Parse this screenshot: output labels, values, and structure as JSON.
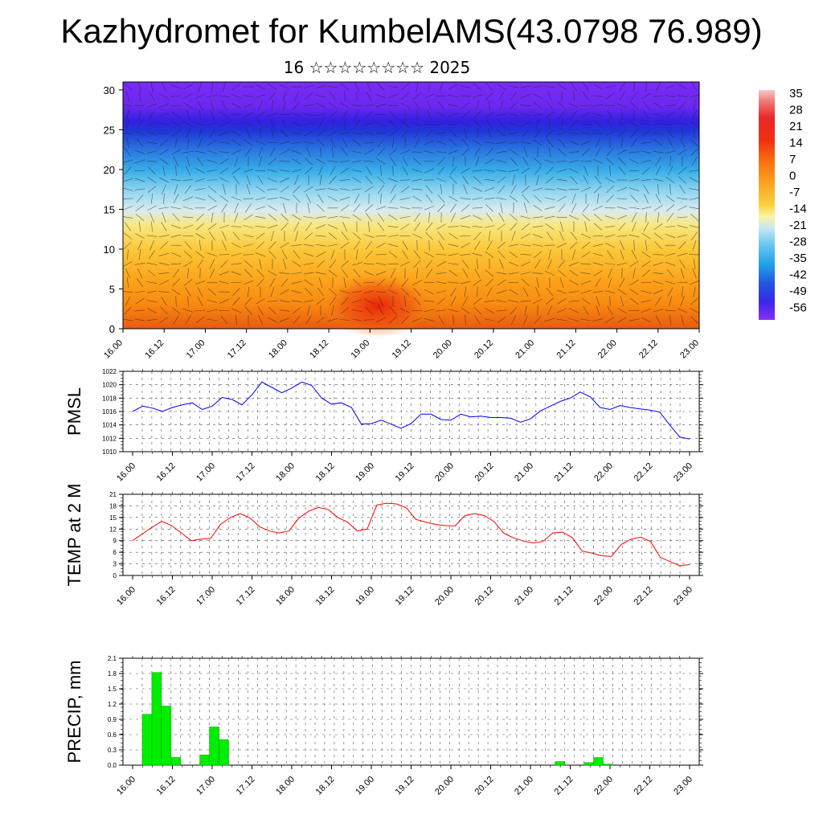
{
  "header": {
    "title": "Kazhydromet for KumbelAMS(43.0798 76.989)",
    "subtitle": "16 ☆☆☆☆☆☆☆☆ 2025"
  },
  "chart_data": [
    {
      "type": "heatmap",
      "title": "",
      "xlabel": "",
      "ylabel": "",
      "ylim": [
        0,
        31
      ],
      "y_ticks": [
        "0",
        "5",
        "10",
        "15",
        "20",
        "25",
        "30"
      ],
      "x_ticks": [
        "16.00",
        "16.12",
        "17.00",
        "17.12",
        "18.00",
        "18.12",
        "19.00",
        "19.12",
        "20.00",
        "20.12",
        "21.00",
        "21.12",
        "22.00",
        "22.12",
        "23.00"
      ],
      "colorbar_labels": [
        "35",
        "28",
        "21",
        "14",
        "7",
        "0",
        "-7",
        "-14",
        "-21",
        "-28",
        "-35",
        "-42",
        "-49",
        "-56"
      ],
      "notes": "Temperature cross-section with wind barbs; warm at surface, cold aloft"
    },
    {
      "type": "line",
      "ylabel": "PMSL",
      "ylim": [
        1010,
        1022
      ],
      "y_ticks": [
        "1010",
        "1012",
        "1014",
        "1016",
        "1018",
        "1020",
        "1022"
      ],
      "x_ticks": [
        "16.00",
        "16.12",
        "17.00",
        "17.12",
        "18.00",
        "18.12",
        "19.00",
        "19.12",
        "20.00",
        "20.12",
        "21.00",
        "21.12",
        "22.00",
        "22.12",
        "23.00"
      ],
      "color": "#0000ff",
      "series": [
        {
          "values": [
            1016.0,
            1016.8,
            1016.5,
            1016.0,
            1016.6,
            1017.0,
            1017.3,
            1016.3,
            1016.8,
            1018.1,
            1017.8,
            1017.0,
            1018.5,
            1020.4,
            1019.6,
            1018.8,
            1019.5,
            1020.4,
            1019.9,
            1018.0,
            1017.1,
            1017.3,
            1016.6,
            1014.1,
            1014.2,
            1014.7,
            1014.1,
            1013.5,
            1014.2,
            1015.6,
            1015.6,
            1014.8,
            1014.7,
            1015.6,
            1015.2,
            1015.3,
            1015.1,
            1015.1,
            1015.0,
            1014.4,
            1014.9,
            1016.1,
            1016.8,
            1017.5,
            1018.0,
            1018.9,
            1018.2,
            1016.6,
            1016.3,
            1016.9,
            1016.6,
            1016.4,
            1016.2,
            1015.9,
            1014.0,
            1012.2,
            1011.9
          ]
        }
      ]
    },
    {
      "type": "line",
      "ylabel": "TEMP at 2 M",
      "ylim": [
        0,
        21
      ],
      "y_ticks": [
        "0",
        "3",
        "6",
        "9",
        "12",
        "15",
        "18",
        "21"
      ],
      "x_ticks": [
        "16.00",
        "16.12",
        "17.00",
        "17.12",
        "18.00",
        "18.12",
        "19.00",
        "19.12",
        "20.00",
        "20.12",
        "21.00",
        "21.12",
        "22.00",
        "22.12",
        "23.00"
      ],
      "color": "#ff0000",
      "series": [
        {
          "values": [
            9.0,
            10.8,
            12.5,
            14.0,
            12.9,
            11.0,
            9.0,
            9.4,
            9.6,
            13.2,
            15.0,
            16.0,
            14.9,
            12.6,
            11.5,
            11.0,
            11.5,
            14.8,
            16.6,
            17.6,
            17.1,
            15.0,
            13.8,
            11.5,
            12.0,
            18.2,
            18.7,
            18.5,
            17.5,
            14.5,
            13.8,
            13.2,
            12.9,
            12.8,
            15.5,
            16.0,
            15.5,
            13.9,
            10.9,
            9.7,
            8.9,
            8.4,
            8.8,
            11.0,
            11.2,
            9.8,
            6.3,
            5.8,
            5.1,
            4.9,
            8.0,
            9.4,
            9.9,
            8.8,
            4.7,
            3.6,
            2.5,
            2.8
          ]
        }
      ]
    },
    {
      "type": "bar",
      "ylabel": "PRECIP, mm",
      "ylim": [
        0,
        2.1
      ],
      "y_ticks": [
        "0.0",
        "0.3",
        "0.6",
        "0.9",
        "1.2",
        "1.5",
        "1.8",
        "2.1"
      ],
      "x_ticks": [
        "16.00",
        "16.12",
        "17.00",
        "17.12",
        "18.00",
        "18.12",
        "19.00",
        "19.12",
        "20.00",
        "20.12",
        "21.00",
        "21.12",
        "22.00",
        "22.12",
        "23.00"
      ],
      "color": "#00ee00",
      "values": [
        0.0,
        1.0,
        1.82,
        1.16,
        0.15,
        0.0,
        0.0,
        0.2,
        0.75,
        0.5,
        0.0,
        0,
        0,
        0,
        0,
        0,
        0,
        0,
        0,
        0,
        0,
        0,
        0,
        0,
        0,
        0,
        0,
        0,
        0,
        0,
        0,
        0,
        0,
        0,
        0,
        0,
        0,
        0,
        0,
        0,
        0,
        0,
        0,
        0,
        0.07,
        0,
        0,
        0.05,
        0.15,
        0.02,
        0,
        0,
        0,
        0,
        0,
        0,
        0,
        0
      ]
    }
  ]
}
